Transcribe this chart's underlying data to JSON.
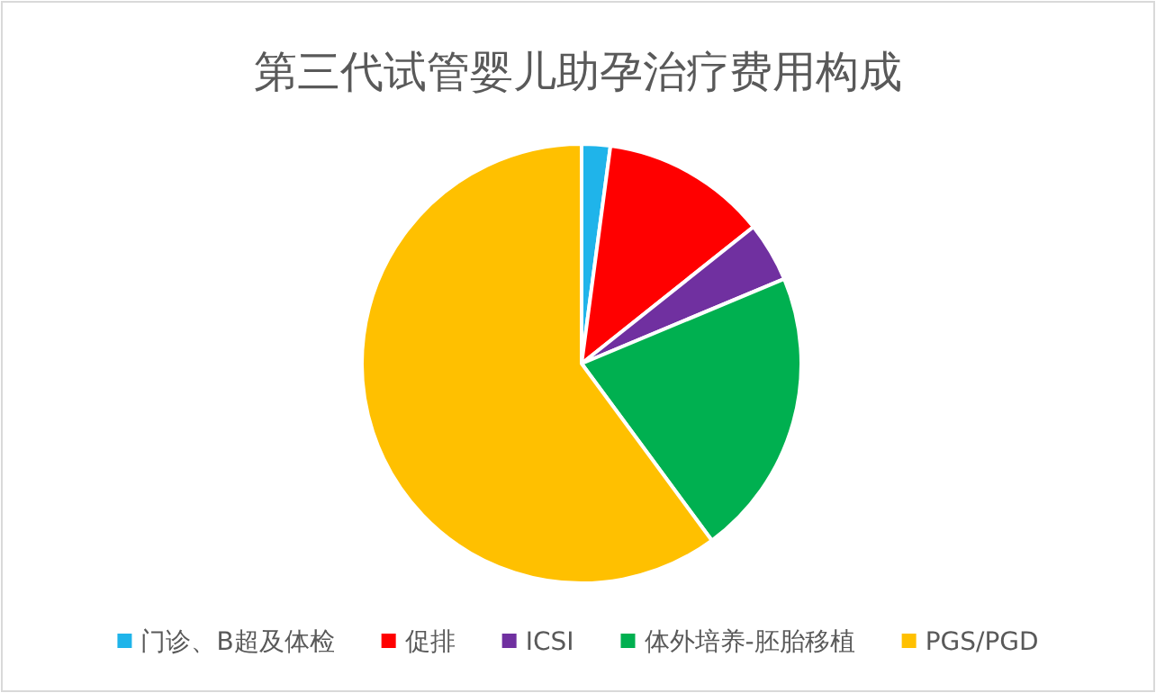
{
  "chart_data": {
    "type": "pie",
    "title": "第三代试管婴儿助孕治疗费用构成",
    "categories": [
      "门诊、B超及体检",
      "促排",
      "ICSI",
      "体外培养-胚胎移植",
      "PGS/PGD"
    ],
    "values": [
      2.1,
      12.2,
      4.4,
      21.2,
      60.1
    ],
    "colors": [
      "#1fb4ea",
      "#ff0000",
      "#7030a0",
      "#00b050",
      "#ffc000"
    ],
    "legend": "bottom"
  }
}
